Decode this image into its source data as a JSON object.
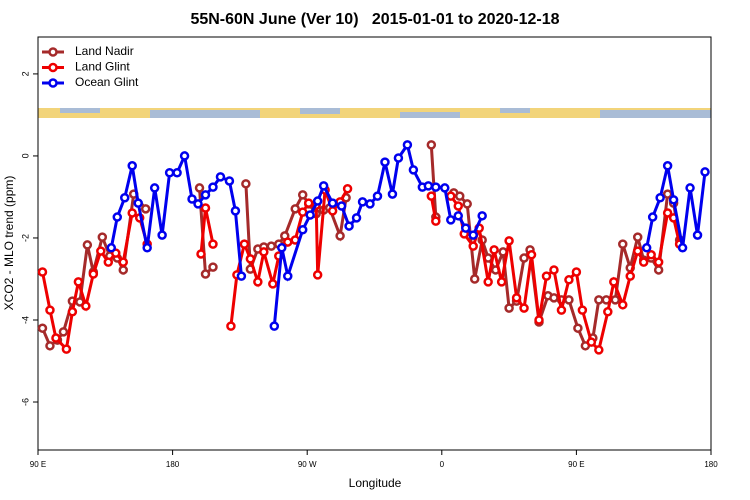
{
  "chart_data": {
    "type": "line",
    "title": "55N-60N June (Ver 10)   2015-01-01 to 2020-12-18",
    "x_label": "Longitude",
    "y_label": "XCO2 - MLO trend (ppm)",
    "xlim": [
      90,
      540
    ],
    "xticks": [
      {
        "value": 90,
        "label": "90 E"
      },
      180,
      {
        "value": 270,
        "label": "90 W"
      },
      {
        "value": 360,
        "label": "0"
      },
      {
        "value": 450,
        "label": "90 E"
      },
      {
        "value": 540,
        "label": "180"
      }
    ],
    "ylim": [
      -7.17,
      2.9
    ],
    "yticks": [
      -6,
      -4,
      -2,
      0,
      2
    ],
    "legend": "top-left",
    "series": [
      {
        "name": "Land Nadir",
        "color": "#a52a2a",
        "x": [
          93,
          98,
          103,
          107,
          113,
          118,
          123,
          127,
          133,
          138,
          143,
          147,
          154,
          162,
          null,
          198,
          202,
          207,
          null,
          229,
          232,
          237,
          241,
          246,
          251,
          255,
          262,
          267,
          271,
          276,
          281,
          285,
          292,
          296,
          null,
          353,
          356,
          null,
          368,
          372,
          377,
          382,
          387,
          391,
          396,
          401,
          405,
          410,
          415,
          419,
          425,
          431,
          435,
          440,
          445,
          451,
          456,
          461,
          465,
          470,
          476,
          481,
          486,
          491,
          495,
          500,
          505,
          511,
          515,
          519
        ],
        "values": [
          -4.2,
          -4.63,
          -4.49,
          -4.29,
          -3.54,
          -3.56,
          -2.17,
          -2.83,
          -1.98,
          -2.44,
          -2.49,
          -2.78,
          -0.93,
          -1.29,
          null,
          -0.78,
          -2.88,
          -2.71,
          null,
          -0.68,
          -2.76,
          -2.27,
          -2.22,
          -2.2,
          -2.15,
          -1.95,
          -1.29,
          -0.95,
          -1.17,
          -1.41,
          -1.32,
          -1.27,
          -1.95,
          -1.02,
          null,
          0.27,
          -1.49,
          null,
          -0.9,
          -0.98,
          -1.17,
          -3.0,
          -2.05,
          -2.49,
          -2.78,
          -2.34,
          -3.71,
          -3.54,
          -2.49,
          -2.29,
          -4.05,
          -3.41,
          -3.46,
          -3.51,
          -3.51,
          -4.2,
          -4.63,
          -4.44,
          -3.51,
          -3.51,
          -3.51,
          -2.15,
          -2.73,
          -1.98,
          -2.54,
          -2.49,
          -2.78,
          -0.93,
          -1.15,
          -2.05
        ]
      },
      {
        "name": "Land Glint",
        "color": "#ee0000",
        "x": [
          93,
          98,
          102,
          109,
          113,
          117,
          122,
          127,
          132,
          137,
          142,
          147,
          153,
          158,
          163,
          null,
          199,
          202,
          207,
          null,
          219,
          223,
          228,
          232,
          237,
          241,
          247,
          251,
          257,
          262,
          267,
          271,
          276,
          277,
          282,
          287,
          292,
          297,
          null,
          353,
          356,
          null,
          366,
          371,
          375,
          381,
          385,
          391,
          395,
          400,
          405,
          410,
          415,
          420,
          425,
          430,
          435,
          440,
          445,
          450,
          454,
          460,
          465,
          471,
          475,
          481,
          486,
          491,
          495,
          500,
          505,
          511,
          515,
          519
        ],
        "values": [
          -2.83,
          -3.76,
          -4.44,
          -4.71,
          -3.8,
          -3.07,
          -3.66,
          -2.88,
          -2.32,
          -2.59,
          -2.37,
          -2.59,
          -1.39,
          -1.51,
          -2.15,
          null,
          -2.39,
          -1.27,
          -2.15,
          null,
          -4.15,
          -2.9,
          -2.15,
          -2.51,
          -3.07,
          -2.34,
          -3.12,
          -2.44,
          -2.1,
          -2.05,
          -1.37,
          -1.15,
          -1.2,
          -2.9,
          -0.83,
          -1.34,
          -1.12,
          -0.8,
          null,
          -0.98,
          -1.59,
          null,
          -0.98,
          -1.22,
          -1.9,
          -2.2,
          -1.76,
          -3.07,
          -2.29,
          -3.07,
          -2.07,
          -3.46,
          -3.71,
          -2.41,
          -4.0,
          -2.93,
          -2.78,
          -3.76,
          -3.02,
          -2.83,
          -3.76,
          -4.54,
          -4.73,
          -3.8,
          -3.07,
          -3.63,
          -2.93,
          -2.32,
          -2.59,
          -2.41,
          -2.59,
          -1.39,
          -1.51,
          -2.15
        ]
      },
      {
        "name": "Ocean Glint",
        "color": "#0000ee",
        "x": [
          139,
          143,
          148,
          153,
          157,
          163,
          168,
          173,
          178,
          183,
          188,
          193,
          197,
          202,
          207,
          212,
          218,
          222,
          226,
          null,
          248,
          253,
          257,
          267,
          272,
          277,
          281,
          287,
          293,
          298,
          303,
          307,
          312,
          317,
          322,
          327,
          331,
          337,
          341,
          347,
          351,
          356,
          362,
          366,
          371,
          376,
          381,
          387,
          null,
          497,
          501,
          506,
          511,
          515,
          521,
          526,
          531,
          536
        ],
        "values": [
          -2.24,
          -1.49,
          -1.02,
          -0.24,
          -1.15,
          -2.24,
          -0.78,
          -1.93,
          -0.41,
          -0.41,
          0.0,
          -1.05,
          -1.17,
          -0.95,
          -0.76,
          -0.51,
          -0.61,
          -1.34,
          -2.93,
          null,
          -4.15,
          -2.24,
          -2.93,
          -1.8,
          -1.44,
          -1.1,
          -0.73,
          -1.15,
          -1.22,
          -1.71,
          -1.51,
          -1.12,
          -1.17,
          -0.98,
          -0.15,
          -0.93,
          -0.05,
          0.27,
          -0.34,
          -0.76,
          -0.73,
          -0.76,
          -0.78,
          -1.56,
          -1.46,
          -1.76,
          -1.93,
          -1.46,
          null,
          -2.24,
          -1.49,
          -1.02,
          -0.24,
          -1.07,
          -2.24,
          -0.78,
          -1.93,
          -0.39
        ]
      }
    ]
  }
}
